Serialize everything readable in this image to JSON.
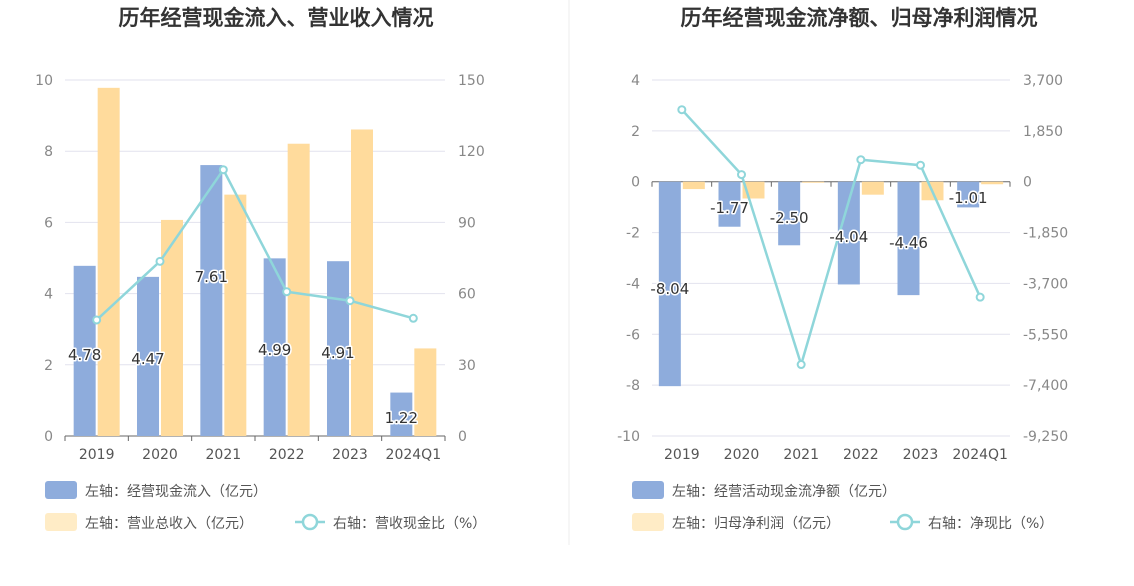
{
  "colors": {
    "bar_primary": "#8eacdc",
    "bar_secondary": "#ffdb9c",
    "line": "#8fd6da",
    "grid": "#e2e2ee",
    "axis": "#666666",
    "legend_secondary_swatch": "#ffecc6"
  },
  "chart_data": [
    {
      "type": "bar",
      "title": "历年经营现金流入、营业收入情况",
      "categories": [
        "2019",
        "2020",
        "2021",
        "2022",
        "2023",
        "2024Q1"
      ],
      "y_left": {
        "ylim": [
          0,
          10
        ],
        "ticks": [
          "0",
          "2",
          "4",
          "6",
          "8",
          "10"
        ]
      },
      "y_right": {
        "ylim": [
          0,
          150
        ],
        "ticks": [
          "0",
          "30",
          "60",
          "90",
          "120",
          "150"
        ]
      },
      "series": [
        {
          "name": "左轴：经营现金流入（亿元）",
          "axis": "left",
          "kind": "bar",
          "values": [
            4.78,
            4.47,
            7.61,
            4.99,
            4.91,
            1.22
          ],
          "labels": [
            "4.78",
            "4.47",
            "7.61",
            "4.99",
            "4.91",
            "1.22"
          ]
        },
        {
          "name": "左轴：营业总收入（亿元）",
          "axis": "left",
          "kind": "bar",
          "values": [
            9.78,
            6.07,
            6.78,
            8.21,
            8.61,
            2.46
          ]
        },
        {
          "name": "右轴：营收现金比（%）",
          "axis": "right",
          "kind": "line",
          "values": [
            48.9,
            73.6,
            112.2,
            60.8,
            57.0,
            49.6
          ]
        }
      ],
      "grid": true,
      "legend_position": "bottom"
    },
    {
      "type": "bar",
      "title": "历年经营现金流净额、归母净利润情况",
      "categories": [
        "2019",
        "2020",
        "2021",
        "2022",
        "2023",
        "2024Q1"
      ],
      "y_left": {
        "ylim": [
          -10,
          4
        ],
        "ticks": [
          "-10",
          "-8",
          "-6",
          "-4",
          "-2",
          "0",
          "2",
          "4"
        ]
      },
      "y_right": {
        "ylim": [
          -9250,
          3700
        ],
        "ticks": [
          "-9,250",
          "-7,400",
          "-5,550",
          "-3,700",
          "-1,850",
          "0",
          "1,850",
          "3,700"
        ]
      },
      "series": [
        {
          "name": "左轴：经营活动现金流净额（亿元）",
          "axis": "left",
          "kind": "bar",
          "values": [
            -8.04,
            -1.77,
            -2.5,
            -4.04,
            -4.46,
            -1.01
          ],
          "labels": [
            "-8.04",
            "-1.77",
            "-2.50",
            "-4.04",
            "-4.46",
            "-1.01"
          ]
        },
        {
          "name": "左轴：归母净利润（亿元）",
          "axis": "left",
          "kind": "bar",
          "values": [
            -0.29,
            -0.66,
            -0.04,
            -0.51,
            -0.73,
            -0.1
          ]
        },
        {
          "name": "右轴：净现比（%）",
          "axis": "right",
          "kind": "line",
          "values": [
            2620,
            260,
            -6650,
            800,
            600,
            -4200
          ]
        }
      ],
      "grid": true,
      "legend_position": "bottom"
    }
  ]
}
